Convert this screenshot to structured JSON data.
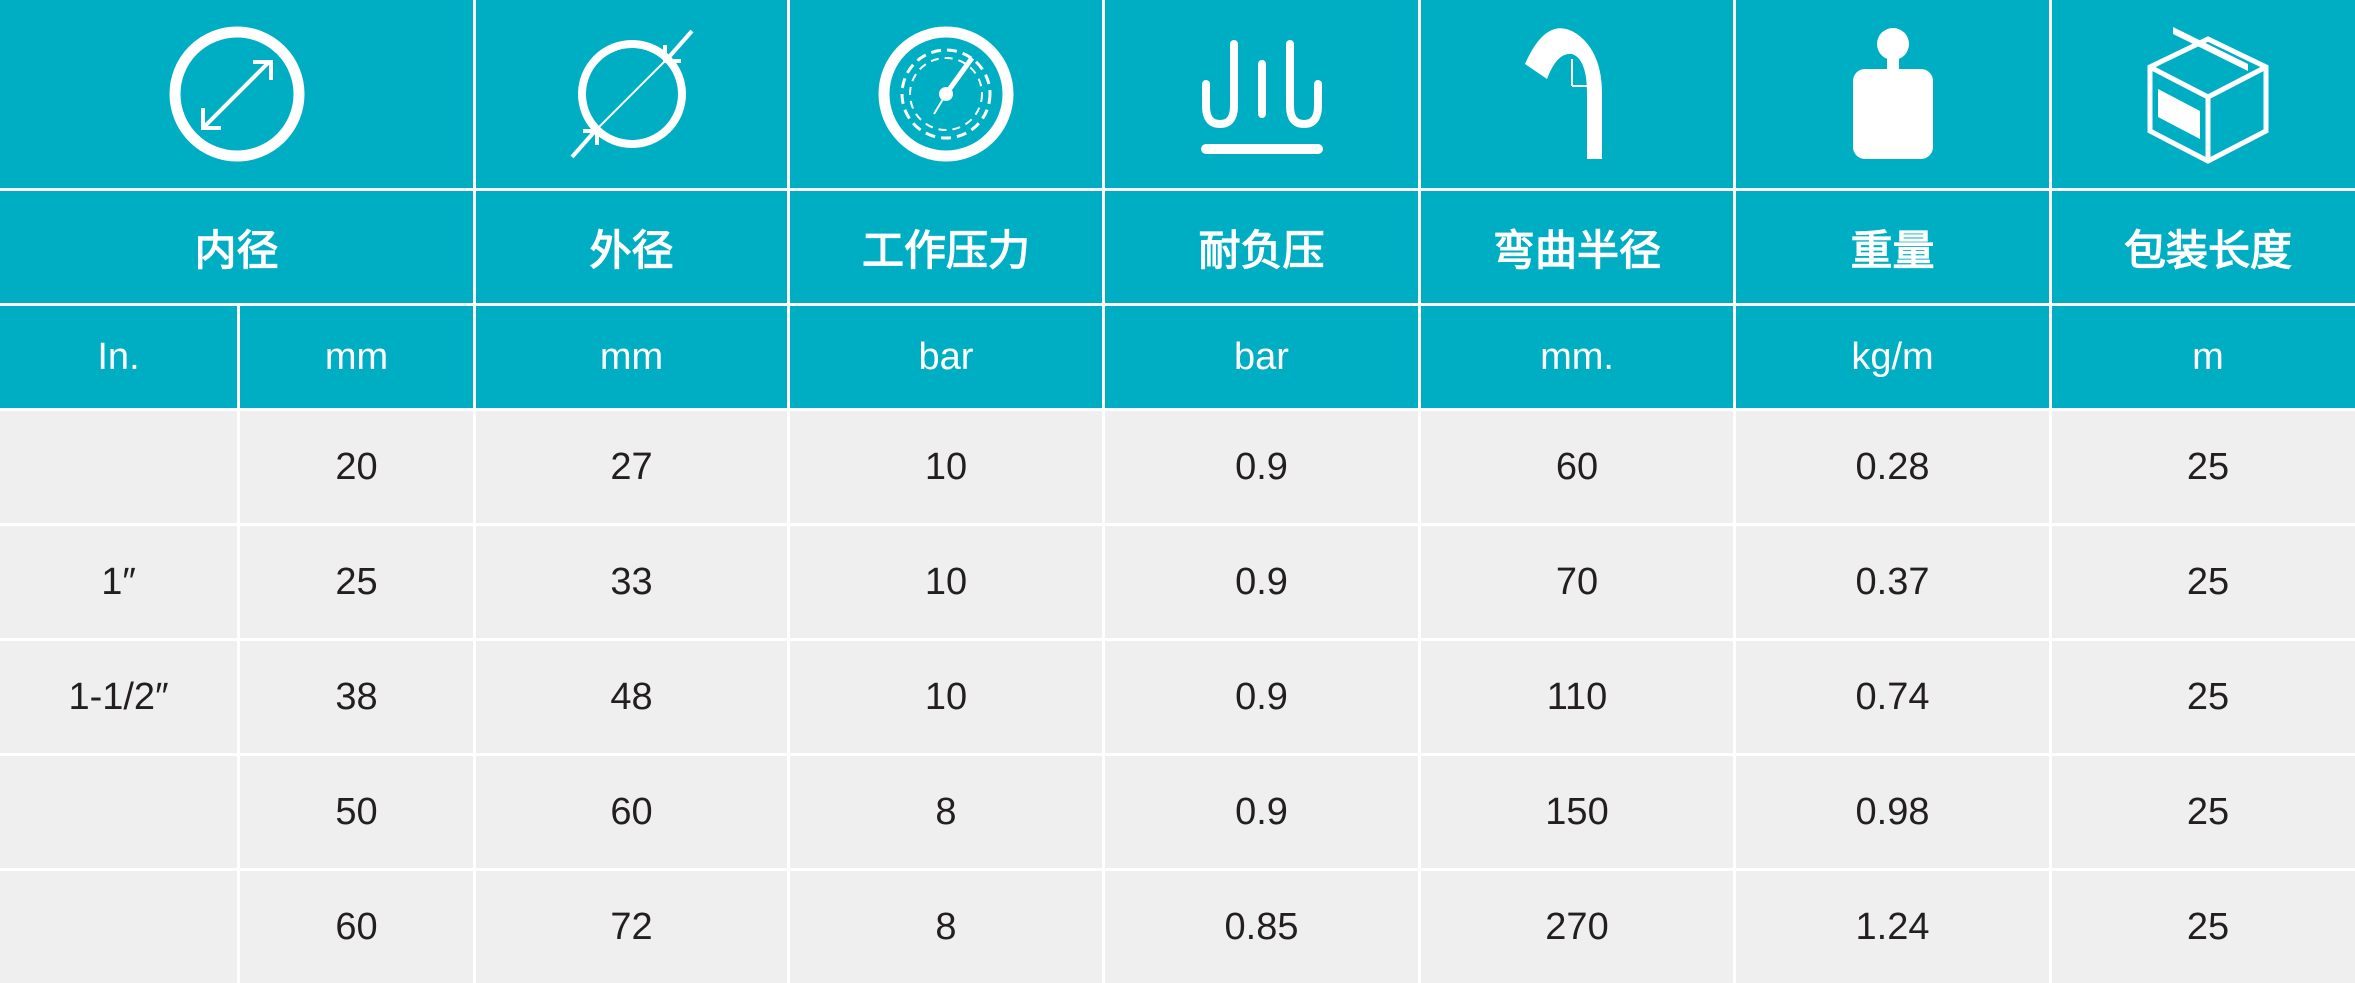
{
  "colors": {
    "header": "#00aec3",
    "row": "#efefef",
    "text": "#231f20"
  },
  "icons": [
    "inner-diameter-icon",
    "outer-diameter-icon",
    "pressure-gauge-icon",
    "vacuum-icon",
    "bend-radius-icon",
    "weight-icon",
    "package-box-icon"
  ],
  "headers": [
    "内径",
    "外径",
    "工作压力",
    "耐负压",
    "弯曲半径",
    "重量",
    "包装长度"
  ],
  "units": [
    "In.",
    "mm",
    "mm",
    "bar",
    "bar",
    "mm.",
    "kg/m",
    "m"
  ],
  "rows": [
    [
      "",
      "20",
      "27",
      "10",
      "0.9",
      "60",
      "0.28",
      "25"
    ],
    [
      "1″",
      "25",
      "33",
      "10",
      "0.9",
      "70",
      "0.37",
      "25"
    ],
    [
      "1-1/2″",
      "38",
      "48",
      "10",
      "0.9",
      "110",
      "0.74",
      "25"
    ],
    [
      "",
      "50",
      "60",
      "8",
      "0.9",
      "150",
      "0.98",
      "25"
    ],
    [
      "",
      "60",
      "72",
      "8",
      "0.85",
      "270",
      "1.24",
      "25"
    ]
  ]
}
